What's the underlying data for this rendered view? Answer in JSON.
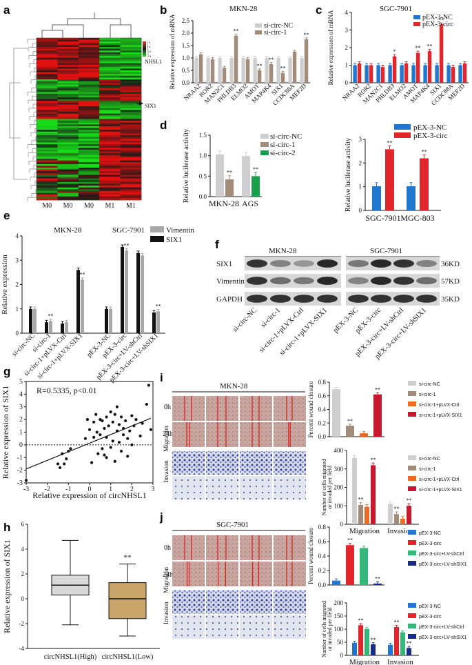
{
  "panels": {
    "a": "a",
    "b": "b",
    "c": "c",
    "d": "d",
    "e": "e",
    "f": "f",
    "g": "g",
    "h": "h",
    "i": "i",
    "j": "j"
  },
  "colors": {
    "gray": "#cfcfcf",
    "tan": "#a38b7a",
    "green": "#1aa04a",
    "blue": "#1f77d0",
    "red": "#e3252c",
    "black": "#111111",
    "orange": "#f06a21",
    "darkred": "#c8182e",
    "teal": "#33b87a",
    "navy": "#1a2a8a"
  },
  "heatmap": {
    "columns": [
      "M0",
      "M0",
      "M0",
      "M1",
      "M1"
    ],
    "labels": [
      "NHSL1",
      "SIX1"
    ],
    "scale": [
      "1.5",
      "1",
      "0.5",
      "0",
      "-0.5",
      "-1",
      "-1.5"
    ]
  },
  "chart_data": [
    {
      "panel": "b",
      "type": "bar",
      "title": "MKN-28",
      "ylabel": "Relative expression of mRNA",
      "ylim": [
        0,
        2.5
      ],
      "yticks": [
        "0.0",
        "0.5",
        "1.0",
        "1.5",
        "2.0",
        "2.5"
      ],
      "categories": [
        "NRAA2",
        "ROR2",
        "MAN2C1",
        "PHLDB3",
        "ELMO2",
        "AMOT",
        "MAP4K4",
        "SIX1",
        "CCDC88A",
        "MEF2D"
      ],
      "series": [
        {
          "name": "si-circ-NC",
          "color": "#cfcfcf",
          "values": [
            1,
            1,
            1,
            1,
            1,
            1,
            1,
            1,
            1,
            1
          ]
        },
        {
          "name": "si-circ-1",
          "color": "#a38b7a",
          "values": [
            1.15,
            0.95,
            0.6,
            1.9,
            0.95,
            0.5,
            0.75,
            0.4,
            1.25,
            1.75
          ]
        }
      ],
      "significance": [
        "",
        "",
        "",
        "**",
        "",
        "**",
        "**",
        "**",
        "",
        "**"
      ]
    },
    {
      "panel": "c",
      "type": "bar",
      "title": "SGC-7901",
      "ylabel": "Relative expression of mRNA",
      "ylim": [
        0,
        4
      ],
      "yticks": [
        "0",
        "1",
        "2",
        "3",
        "4"
      ],
      "categories": [
        "NRAA2",
        "ROR2",
        "MAN2C1",
        "PHLDB3",
        "ELMO2",
        "AMOT",
        "MAP4K4",
        "SIX1",
        "CCDC88A",
        "MEF2D"
      ],
      "series": [
        {
          "name": "pEX-3-NC",
          "color": "#1f77d0",
          "values": [
            1,
            1,
            1,
            1,
            1,
            1,
            1,
            1,
            1,
            1
          ]
        },
        {
          "name": "pEX-3-circ",
          "color": "#e3252c",
          "values": [
            1.1,
            1.0,
            0.9,
            1.5,
            1.1,
            1.7,
            1.8,
            3.3,
            0.9,
            1.1
          ]
        }
      ],
      "significance": [
        "",
        "",
        "",
        "*",
        "",
        "**",
        "**",
        "**",
        "",
        ""
      ]
    },
    {
      "panel": "d1",
      "type": "bar",
      "ylabel": "Relative luciferase activity",
      "ylim": [
        0,
        1.5
      ],
      "yticks": [
        "0.0",
        "0.5",
        "1.0",
        "1.5"
      ],
      "categories": [
        "MKN-28",
        "AGS"
      ],
      "series": [
        {
          "name": "si-circ-NC",
          "color": "#cfcfcf",
          "values": [
            1.03,
            0.99
          ]
        },
        {
          "name": "si-circ-1",
          "color": "#a38b7a",
          "values": [
            0.42,
            null
          ]
        },
        {
          "name": "si-circ-2",
          "color": "#1aa04a",
          "values": [
            null,
            0.5
          ]
        }
      ],
      "significance": [
        "**",
        "**"
      ]
    },
    {
      "panel": "d2",
      "type": "bar",
      "ylabel": "Relative luciferase activity",
      "ylim": [
        0,
        3
      ],
      "yticks": [
        "0",
        "1",
        "2",
        "3"
      ],
      "categories": [
        "SGC-7901",
        "MGC-803"
      ],
      "series": [
        {
          "name": "pEX-3-NC",
          "color": "#1f77d0",
          "values": [
            1.02,
            1.02
          ]
        },
        {
          "name": "pEX-3-circ",
          "color": "#e3252c",
          "values": [
            2.58,
            2.2
          ]
        }
      ],
      "significance": [
        "**",
        "**"
      ]
    },
    {
      "panel": "e",
      "type": "bar",
      "ylabel": "Relative expression",
      "ylim": [
        0,
        4
      ],
      "yticks": [
        "0",
        "1",
        "2",
        "3",
        "4"
      ],
      "group_titles": [
        "MKN-28",
        "SGC-7901"
      ],
      "categories": [
        "si-circ-NC",
        "si-circ-1",
        "si-circ-1+pLVX-Ctrl",
        "si-circ-1+pLVX-SIX1",
        "pEX-3-NC",
        "pEX-3-circ",
        "pEX-3-circ+LV-shCtrl",
        "pEX-3-circ+LV-shSIX1"
      ],
      "series": [
        {
          "name": "SIX1",
          "color": "#111111",
          "values": [
            1.0,
            0.45,
            0.4,
            2.6,
            1.0,
            3.55,
            3.3,
            0.85
          ]
        },
        {
          "name": "Vimentin",
          "color": "#a8a8a8",
          "values": [
            1.0,
            0.5,
            0.45,
            2.2,
            1.0,
            3.4,
            3.2,
            0.9
          ]
        }
      ],
      "significance": [
        "",
        "**",
        "",
        "**",
        "",
        "**",
        "",
        "**"
      ]
    },
    {
      "panel": "g",
      "type": "scatter",
      "annotation": "R=0.5335, p<0.01",
      "xlabel": "Relative expression of circNHSL1",
      "ylabel": "Relative expression of SIX1",
      "xlim": [
        -3,
        3
      ],
      "ylim": [
        -3,
        5
      ],
      "xticks": [
        "-3",
        "-2",
        "-1",
        "0",
        "1",
        "2",
        "3"
      ],
      "yticks": [
        "-3",
        "-2",
        "-1",
        "0",
        "1",
        "2",
        "3",
        "4",
        "5"
      ],
      "points": [
        [
          -3,
          -2.8
        ],
        [
          -1.5,
          -1.5
        ],
        [
          -1.4,
          -1.8
        ],
        [
          -1.2,
          -1.5
        ],
        [
          -1.1,
          -1.1
        ],
        [
          -1.0,
          -0.5
        ],
        [
          -0.9,
          -0.3
        ],
        [
          -1.3,
          -0.7
        ],
        [
          -0.2,
          0.5
        ],
        [
          -0.1,
          2.0
        ],
        [
          0.0,
          1.2
        ],
        [
          0.1,
          -1.4
        ],
        [
          0.2,
          0.6
        ],
        [
          0.3,
          2.4
        ],
        [
          0.35,
          1.0
        ],
        [
          0.4,
          -0.7
        ],
        [
          0.5,
          0.8
        ],
        [
          0.5,
          2.0
        ],
        [
          0.6,
          1.9
        ],
        [
          0.6,
          -0.3
        ],
        [
          0.7,
          1.3
        ],
        [
          0.7,
          -0.8
        ],
        [
          0.8,
          2.2
        ],
        [
          0.8,
          0.6
        ],
        [
          0.9,
          1.5
        ],
        [
          1.0,
          -0.2
        ],
        [
          1.0,
          2.6
        ],
        [
          1.1,
          0.3
        ],
        [
          1.1,
          1.8
        ],
        [
          1.2,
          -1.3
        ],
        [
          1.2,
          2.4
        ],
        [
          1.3,
          1.1
        ],
        [
          1.4,
          0.2
        ],
        [
          1.4,
          1.6
        ],
        [
          1.5,
          -0.5
        ],
        [
          1.5,
          2.2
        ],
        [
          1.6,
          0.8
        ],
        [
          1.6,
          1.3
        ],
        [
          1.7,
          1.9
        ],
        [
          1.8,
          -0.9
        ],
        [
          1.8,
          0.5
        ],
        [
          1.9,
          1.1
        ],
        [
          2.0,
          2.3
        ],
        [
          2.0,
          0.0
        ],
        [
          2.1,
          1.5
        ],
        [
          2.2,
          2.0
        ],
        [
          2.4,
          0.7
        ],
        [
          2.5,
          1.7
        ],
        [
          2.7,
          3.2
        ],
        [
          2.8,
          4.7
        ],
        [
          2.9,
          1.2
        ],
        [
          1.3,
          3.0
        ],
        [
          0.2,
          1.8
        ],
        [
          0.8,
          -1.0
        ]
      ],
      "fit": [
        [
          -3,
          -1.9
        ],
        [
          2.9,
          2.1
        ]
      ]
    },
    {
      "panel": "h",
      "type": "box",
      "ylabel": "Relative expression of SIX1",
      "ylim": [
        -4,
        6
      ],
      "yticks": [
        "-4",
        "-2",
        "0",
        "2",
        "4",
        "6"
      ],
      "categories": [
        "circNHSL1(High)",
        "circNHSL1(Low)"
      ],
      "boxes": [
        {
          "min": -2.1,
          "q1": 0.3,
          "median": 1.1,
          "q3": 1.9,
          "max": 4.7,
          "color": "#d9d9d9"
        },
        {
          "min": -3.0,
          "q1": -1.6,
          "median": 0.0,
          "q3": 1.3,
          "max": 2.8,
          "color": "#c9a46b"
        }
      ],
      "significance": [
        "",
        "**"
      ]
    },
    {
      "panel": "i1",
      "type": "bar",
      "ylabel": "Percent wound closure",
      "ylim": [
        0,
        0.8
      ],
      "yticks": [
        "0.0",
        "0.2",
        "0.4",
        "0.6",
        "0.8"
      ],
      "categories": [
        "si-circ-NC",
        "si-circ-1",
        "si-circ-1+pLVX-Ctrl",
        "si-circ-1+pLVX-SIX1"
      ],
      "colors": [
        "#cfcfcf",
        "#a38b7a",
        "#f06a21",
        "#c8182e"
      ],
      "values": [
        0.7,
        0.16,
        0.05,
        0.62
      ],
      "significance": [
        "",
        "**",
        "",
        "**"
      ]
    },
    {
      "panel": "i2",
      "type": "bar",
      "ylabel": "Number of cells migrated or invaded per field",
      "ylim": [
        0,
        400
      ],
      "yticks": [
        "0",
        "100",
        "200",
        "300",
        "400"
      ],
      "categories": [
        "Migration",
        "Invasion"
      ],
      "series": [
        {
          "name": "si-circ-NC",
          "color": "#cfcfcf",
          "values": [
            360,
            110
          ]
        },
        {
          "name": "si-circ-1",
          "color": "#a38b7a",
          "values": [
            105,
            55
          ]
        },
        {
          "name": "si-circ-1+pLVX-Ctrl",
          "color": "#f06a21",
          "values": [
            95,
            30
          ]
        },
        {
          "name": "si-circ-1+pLVX-SIX1",
          "color": "#c8182e",
          "values": [
            320,
            100
          ]
        }
      ],
      "significance": [
        [
          "",
          "**",
          "",
          "**"
        ],
        [
          "",
          "**",
          "",
          "**"
        ]
      ]
    },
    {
      "panel": "j1",
      "type": "bar",
      "ylabel": "Percent wound closure",
      "ylim": [
        0,
        0.8
      ],
      "yticks": [
        "0.0",
        "0.2",
        "0.4",
        "0.6",
        "0.8"
      ],
      "categories": [
        "pEX-3-NC",
        "pEX-3-circ",
        "pEX-3-circ+LV-shCtrl",
        "pEX-3-circ+LV-shSIX1"
      ],
      "colors": [
        "#1f77d0",
        "#e3252c",
        "#33b87a",
        "#1a2a8a"
      ],
      "values": [
        0.06,
        0.55,
        0.51,
        0.02
      ],
      "significance": [
        "",
        "**",
        "",
        "**"
      ]
    },
    {
      "panel": "j2",
      "type": "bar",
      "ylabel": "Number of cells migrated or invaded per field",
      "ylim": [
        0,
        200
      ],
      "yticks": [
        "0",
        "50",
        "100",
        "150",
        "200"
      ],
      "categories": [
        "Migration",
        "Invasion"
      ],
      "series": [
        {
          "name": "pEX-3-NC",
          "color": "#1f77d0",
          "values": [
            48,
            40
          ]
        },
        {
          "name": "pEX-3-circ",
          "color": "#e3252c",
          "values": [
            115,
            108
          ]
        },
        {
          "name": "pEX-3-circ+LV-shCtrl",
          "color": "#33b87a",
          "values": [
            100,
            88
          ]
        },
        {
          "name": "pEX-3-circ+LV-shSIX1",
          "color": "#1a2a8a",
          "values": [
            42,
            28
          ]
        }
      ],
      "significance": [
        [
          "",
          "**",
          "",
          "**"
        ],
        [
          "",
          "**",
          "",
          "**"
        ]
      ]
    }
  ],
  "western": {
    "groups": [
      "MKN-28",
      "SGC-7901"
    ],
    "rows": [
      {
        "name": "SIX1",
        "kd": "36KD"
      },
      {
        "name": "Vimentin",
        "kd": "57KD"
      },
      {
        "name": "GAPDH",
        "kd": "35KD"
      }
    ],
    "lanes": [
      "si-circ-NC",
      "si-circ-1",
      "si-circ-1+pLVX-Ctrl",
      "si-circ-1+pLVX-SIX1",
      "pEX-3-NC",
      "pEX-3-circ",
      "pEX-3-circ+LV-shCtrl",
      "pEX-3-circ+LV-shSIX1"
    ]
  },
  "micro": {
    "i_title": "MKN-28",
    "j_title": "SGC-7901",
    "row_labels": [
      "0h",
      "24h"
    ],
    "side_labels": [
      "Invasion",
      "Migration"
    ]
  }
}
